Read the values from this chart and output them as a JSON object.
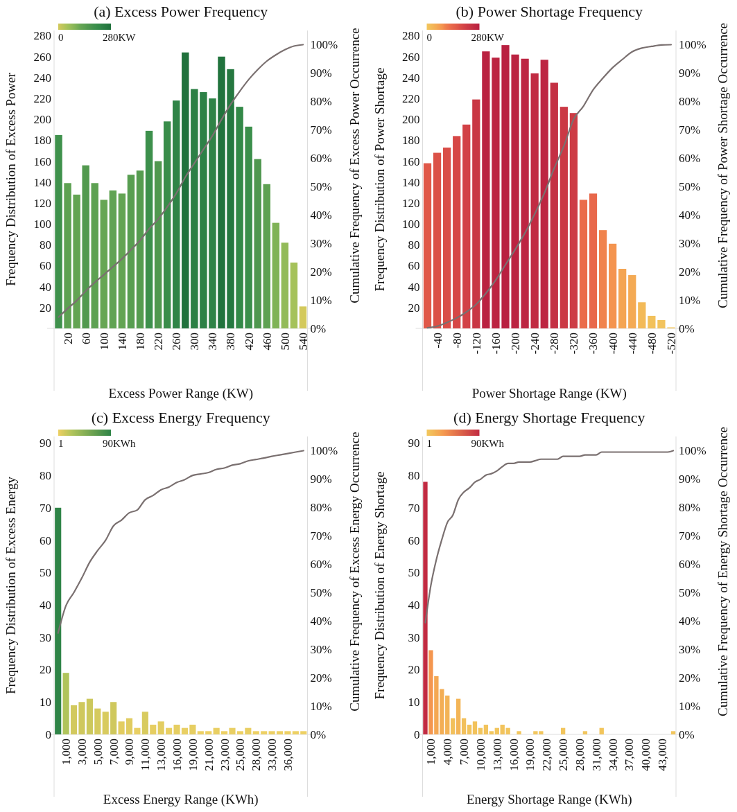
{
  "chart_data": [
    {
      "type": "bar",
      "title": "(a) Excess Power Frequency",
      "xlabel": "Excess Power Range (KW)",
      "ylabel": "Frequency Distribution of Excess Power",
      "y2label": "Cumulative Frequency of Excess Power Occurrence",
      "categories": [
        null,
        "20",
        null,
        "60",
        null,
        "100",
        null,
        "140",
        null,
        "180",
        null,
        "220",
        null,
        "260",
        null,
        "300",
        null,
        "340",
        null,
        "380",
        null,
        "420",
        null,
        "460",
        null,
        "500",
        null,
        "540"
      ],
      "series": [
        {
          "type": "bar",
          "values": [
            185,
            139,
            128,
            156,
            139,
            123,
            132,
            129,
            147,
            151,
            189,
            160,
            198,
            218,
            264,
            229,
            226,
            220,
            260,
            248,
            212,
            193,
            162,
            138,
            101,
            82,
            63,
            21
          ],
          "colors": [
            "#3f914c",
            "#5da152",
            "#63a453",
            "#52994f",
            "#5da152",
            "#67a654",
            "#61a353",
            "#63a453",
            "#589e51",
            "#559c50",
            "#3d904c",
            "#50984f",
            "#398d4a",
            "#2f8447",
            "#20713c",
            "#2c8045",
            "#2d8146",
            "#2f8347",
            "#21733d",
            "#257840",
            "#338948",
            "#3b8f4b",
            "#4f974f",
            "#5ea152",
            "#80b357",
            "#93bb59",
            "#a5c25a",
            "#d3c95c"
          ]
        },
        {
          "type": "line",
          "axis": "y2",
          "color": "#7a7070",
          "values": [
            4.0,
            7.0,
            9.8,
            13.2,
            16.2,
            18.9,
            21.7,
            24.5,
            27.7,
            31.0,
            35.1,
            38.5,
            42.8,
            47.6,
            53.3,
            58.2,
            63.1,
            67.9,
            73.6,
            78.9,
            83.5,
            87.7,
            91.2,
            94.2,
            96.4,
            98.2,
            99.5,
            100
          ]
        }
      ],
      "ylim": [
        0,
        285
      ],
      "yticks": [
        20,
        40,
        60,
        80,
        100,
        120,
        140,
        160,
        180,
        200,
        220,
        240,
        260,
        280
      ],
      "y2lim": [
        0,
        105
      ],
      "y2ticks": [
        {
          "value": 0,
          "label": "0%"
        },
        {
          "value": 10,
          "label": "10%"
        },
        {
          "value": 20,
          "label": "20%"
        },
        {
          "value": 30,
          "label": "30%"
        },
        {
          "value": 40,
          "label": "40%"
        },
        {
          "value": 50,
          "label": "50%"
        },
        {
          "value": 60,
          "label": "60%"
        },
        {
          "value": 70,
          "label": "70%"
        },
        {
          "value": 80,
          "label": "80%"
        },
        {
          "value": 90,
          "label": "90%"
        },
        {
          "value": 100,
          "label": "100%"
        }
      ],
      "annotations": [
        "0",
        "280KW"
      ]
    },
    {
      "type": "bar",
      "title": "(b) Power Shortage Frequency",
      "xlabel": "Power Shortage Range (KW)",
      "ylabel": "Frequency Distribution of Power Shortage",
      "y2label": "Cumulative Frequency of Power Shortage Occurrence",
      "categories": [
        null,
        "-40",
        null,
        "-80",
        null,
        "-120",
        null,
        "-160",
        null,
        "-200",
        null,
        "-240",
        null,
        "-280",
        null,
        "-320",
        null,
        "-360",
        null,
        "-400",
        null,
        "-440",
        null,
        "-480",
        null,
        "-520"
      ],
      "series": [
        {
          "type": "bar",
          "values": [
            158,
            168,
            173,
            184,
            195,
            219,
            265,
            259,
            271,
            262,
            258,
            244,
            257,
            235,
            212,
            206,
            123,
            129,
            94,
            81,
            57,
            51,
            25,
            12,
            8,
            1
          ],
          "colors": [
            "#e05848",
            "#db5147",
            "#d94d47",
            "#d64746",
            "#d24146",
            "#c93744",
            "#ba2241",
            "#bc2441",
            "#b92041",
            "#bb2341",
            "#bd2542",
            "#c12b42",
            "#bd2542",
            "#c43043",
            "#cb3945",
            "#cd3c45",
            "#ea6c4b",
            "#e8684b",
            "#f0834d",
            "#f4944f",
            "#f4a553",
            "#f4aa54",
            "#f3ba58",
            "#f2c15b",
            "#f2c35c",
            "#f2c65d"
          ]
        },
        {
          "type": "line",
          "axis": "y2",
          "color": "#7a7070",
          "values": [
            0.2,
            0.8,
            2.1,
            3.7,
            5.8,
            8.5,
            12.4,
            17.0,
            22.4,
            27.8,
            33.6,
            40.3,
            47.7,
            56.4,
            64.3,
            73.7,
            78.3,
            84.1,
            88.2,
            91.9,
            94.8,
            97.5,
            98.8,
            99.4,
            99.9,
            100
          ]
        }
      ],
      "ylim": [
        0,
        285
      ],
      "yticks": [
        20,
        40,
        60,
        80,
        100,
        120,
        140,
        160,
        180,
        200,
        220,
        240,
        260,
        280
      ],
      "y2lim": [
        0,
        105
      ],
      "y2ticks": [
        {
          "value": 0,
          "label": "0%"
        },
        {
          "value": 10,
          "label": "10%"
        },
        {
          "value": 20,
          "label": "20%"
        },
        {
          "value": 30,
          "label": "30%"
        },
        {
          "value": 40,
          "label": "40%"
        },
        {
          "value": 50,
          "label": "50%"
        },
        {
          "value": 60,
          "label": "60%"
        },
        {
          "value": 70,
          "label": "70%"
        },
        {
          "value": 80,
          "label": "80%"
        },
        {
          "value": 90,
          "label": "90%"
        },
        {
          "value": 100,
          "label": "100%"
        }
      ],
      "annotations": [
        "0",
        "280KW"
      ]
    },
    {
      "type": "bar",
      "title": "(c) Excess Energy Frequency",
      "xlabel": "Excess Energy Range (KWh)",
      "ylabel": "Frequency Distribution of Excess Energy",
      "y2label": "Cumulative Frequency of Excess Energy Occurrence",
      "categories": [
        null,
        "1,000",
        null,
        "3,000",
        null,
        "5,000",
        null,
        "7,000",
        null,
        "9,000",
        null,
        "11,000",
        null,
        "13,000",
        null,
        "16,000",
        null,
        "19,000",
        null,
        "21,000",
        null,
        "23,000",
        null,
        "25,000",
        null,
        "28,000",
        null,
        "33,000",
        null,
        "36,000",
        null,
        null
      ],
      "series": [
        {
          "type": "bar",
          "values": [
            70,
            19,
            9,
            10,
            11,
            8,
            7,
            10,
            4,
            5,
            2,
            7,
            3,
            4,
            2,
            3,
            2,
            3,
            1,
            1,
            2,
            1,
            2,
            1,
            2,
            1,
            1,
            1,
            1,
            1,
            1,
            1
          ],
          "colors": [
            "#2f8447",
            "#b0c45b",
            "#d2c95e",
            "#cfc85d",
            "#ccc85c",
            "#d5ca5e",
            "#d8cb5f",
            "#cfc85d",
            "#e3cd61",
            "#e0cc60",
            "#e9cf63",
            "#d8cb5f",
            "#e6ce62",
            "#e3cd61",
            "#e9cf63",
            "#e6ce62",
            "#e9cf63",
            "#e6ce62",
            "#edd064",
            "#edd064",
            "#e9cf63",
            "#edd064",
            "#e9cf63",
            "#edd064",
            "#e9cf63",
            "#edd064",
            "#edd064",
            "#edd064",
            "#edd064",
            "#edd064",
            "#edd064",
            "#edd064"
          ]
        },
        {
          "type": "line",
          "axis": "y2",
          "color": "#7a7070",
          "values": [
            35.7,
            45.4,
            50.0,
            55.1,
            60.7,
            64.8,
            68.4,
            73.5,
            75.5,
            78.1,
            79.1,
            82.7,
            84.2,
            86.2,
            87.2,
            88.8,
            89.8,
            91.3,
            91.8,
            92.3,
            93.4,
            93.9,
            94.9,
            95.4,
            96.4,
            96.9,
            97.4,
            98.0,
            98.5,
            99.0,
            99.5,
            100
          ]
        }
      ],
      "ylim": [
        0,
        92
      ],
      "yticks": [
        0,
        10,
        20,
        30,
        40,
        50,
        60,
        70,
        80,
        90
      ],
      "y2lim": [
        0,
        105
      ],
      "y2ticks": [
        {
          "value": 0,
          "label": "0%"
        },
        {
          "value": 10,
          "label": "10%"
        },
        {
          "value": 20,
          "label": "20%"
        },
        {
          "value": 30,
          "label": "30%"
        },
        {
          "value": 40,
          "label": "40%"
        },
        {
          "value": 50,
          "label": "50%"
        },
        {
          "value": 60,
          "label": "60%"
        },
        {
          "value": 70,
          "label": "70%"
        },
        {
          "value": 80,
          "label": "80%"
        },
        {
          "value": 90,
          "label": "90%"
        },
        {
          "value": 100,
          "label": "100%"
        }
      ],
      "annotations": [
        "1",
        "90KWh"
      ]
    },
    {
      "type": "bar",
      "title": "(d) Energy Shortage Frequency",
      "xlabel": "Energy Shortage Range (KWh)",
      "ylabel": "Frequency Distribution of Energy Shortage",
      "y2label": "Cumulative Frequency of Energy Shortage Occurrence",
      "categories": [
        null,
        "1,000",
        null,
        null,
        "4,000",
        null,
        null,
        "7,000",
        null,
        null,
        "10,000",
        null,
        null,
        "13,000",
        null,
        null,
        "16,000",
        null,
        null,
        "19,000",
        null,
        null,
        "22,000",
        null,
        null,
        "25,000",
        null,
        null,
        "28,000",
        null,
        null,
        "31,000",
        null,
        null,
        "34,000",
        null,
        null,
        "37,000",
        null,
        null,
        "40,000",
        null,
        null,
        "43,000",
        null,
        null
      ],
      "series": [
        {
          "type": "bar",
          "values": [
            78,
            26,
            18,
            14,
            12,
            5,
            11,
            5,
            3,
            4,
            2,
            3,
            1,
            2,
            3,
            2,
            0,
            1,
            0,
            0,
            1,
            1,
            0,
            0,
            0,
            2,
            0,
            0,
            0,
            1,
            0,
            0,
            2,
            0,
            0,
            0,
            0,
            0,
            0,
            0,
            0,
            0,
            0,
            0,
            0,
            1
          ],
          "colors": [
            "#c12b42",
            "#f4964f",
            "#f4a853",
            "#f3ae55",
            "#f3b356",
            "#f2c05b",
            "#f3b557",
            "#f2c05b",
            "#f2c35c",
            "#f2c25b",
            "#f2c55c",
            "#f2c35c",
            "#f2c65d",
            "#f2c55c",
            "#f2c35c",
            "#f2c55c",
            "#f2c65d",
            "#f2c65d",
            "#f2c65d",
            "#f2c65d",
            "#f2c65d",
            "#f2c65d",
            "#f2c65d",
            "#f2c65d",
            "#f2c65d",
            "#f2c55c",
            "#f2c65d",
            "#f2c65d",
            "#f2c65d",
            "#f2c65d",
            "#f2c65d",
            "#f2c65d",
            "#f2c55c",
            "#f2c65d",
            "#f2c65d",
            "#f2c65d",
            "#f2c65d",
            "#f2c65d",
            "#f2c65d",
            "#f2c65d",
            "#f2c65d",
            "#f2c65d",
            "#f2c65d",
            "#f2c65d",
            "#f2c65d",
            "#f2c65d"
          ]
        },
        {
          "type": "line",
          "axis": "y2",
          "color": "#7a7070",
          "values": [
            39.4,
            52.5,
            61.6,
            68.7,
            74.7,
            77.3,
            82.8,
            85.4,
            86.9,
            88.9,
            89.9,
            91.4,
            91.9,
            92.9,
            94.4,
            95.5,
            95.5,
            96.0,
            96.0,
            96.0,
            96.5,
            97.0,
            97.0,
            97.0,
            97.0,
            98.0,
            98.0,
            98.0,
            98.0,
            98.5,
            98.5,
            98.5,
            99.5,
            99.5,
            99.5,
            99.5,
            99.5,
            99.5,
            99.5,
            99.5,
            99.5,
            99.5,
            99.5,
            99.5,
            99.5,
            100
          ]
        }
      ],
      "ylim": [
        0,
        92
      ],
      "yticks": [
        0,
        10,
        20,
        30,
        40,
        50,
        60,
        70,
        80,
        90
      ],
      "y2lim": [
        0,
        105
      ],
      "y2ticks": [
        {
          "value": 0,
          "label": "0%"
        },
        {
          "value": 10,
          "label": "10%"
        },
        {
          "value": 20,
          "label": "20%"
        },
        {
          "value": 30,
          "label": "30%"
        },
        {
          "value": 40,
          "label": "40%"
        },
        {
          "value": 50,
          "label": "50%"
        },
        {
          "value": 60,
          "label": "60%"
        },
        {
          "value": 70,
          "label": "70%"
        },
        {
          "value": 80,
          "label": "80%"
        },
        {
          "value": 90,
          "label": "90%"
        },
        {
          "value": 100,
          "label": "100%"
        }
      ],
      "annotations": [
        "1",
        "90KWh"
      ]
    }
  ]
}
